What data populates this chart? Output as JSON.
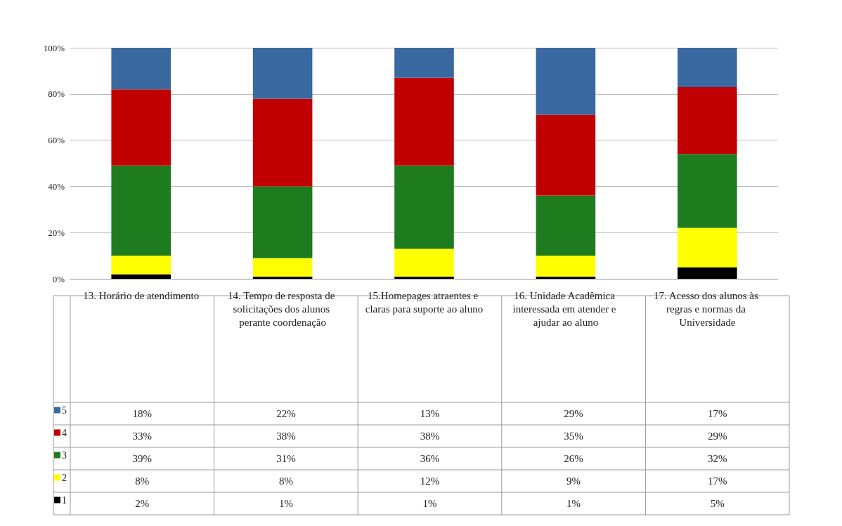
{
  "chart_data": {
    "type": "bar",
    "stacked": true,
    "categories": [
      "13. Horário de atendimento",
      "14. Tempo de resposta de solicitações dos alunos perante coordenação",
      "15.Homepages atraentes e claras para suporte ao aluno",
      "16. Unidade Acadêmica interessada em atender e ajudar ao aluno",
      "17. Acesso dos alunos às regras e normas da Universidade"
    ],
    "series": [
      {
        "name": "1",
        "color": "#000000",
        "values": [
          2,
          1,
          1,
          1,
          5
        ],
        "value_labels": [
          "2%",
          "1%",
          "1%",
          "1%",
          "5%"
        ]
      },
      {
        "name": "2",
        "color": "#ffff00",
        "values": [
          8,
          8,
          12,
          9,
          17
        ],
        "value_labels": [
          "8%",
          "8%",
          "12%",
          "9%",
          "17%"
        ]
      },
      {
        "name": "3",
        "color": "#1e7b1e",
        "values": [
          39,
          31,
          36,
          26,
          32
        ],
        "value_labels": [
          "39%",
          "31%",
          "36%",
          "26%",
          "32%"
        ]
      },
      {
        "name": "4",
        "color": "#c00000",
        "values": [
          33,
          38,
          38,
          35,
          29
        ],
        "value_labels": [
          "33%",
          "38%",
          "38%",
          "35%",
          "29%"
        ]
      },
      {
        "name": "5",
        "color": "#3a68a0",
        "values": [
          18,
          22,
          13,
          29,
          17
        ],
        "value_labels": [
          "18%",
          "22%",
          "13%",
          "29%",
          "17%"
        ]
      }
    ],
    "ylim": [
      0,
      100
    ],
    "yticks": [
      {
        "value": 0,
        "label": "0%"
      },
      {
        "value": 20,
        "label": "20%"
      },
      {
        "value": 40,
        "label": "40%"
      },
      {
        "value": 60,
        "label": "60%"
      },
      {
        "value": 80,
        "label": "80%"
      },
      {
        "value": 100,
        "label": "100%"
      }
    ],
    "grid": "y",
    "legend": "bottom left"
  }
}
